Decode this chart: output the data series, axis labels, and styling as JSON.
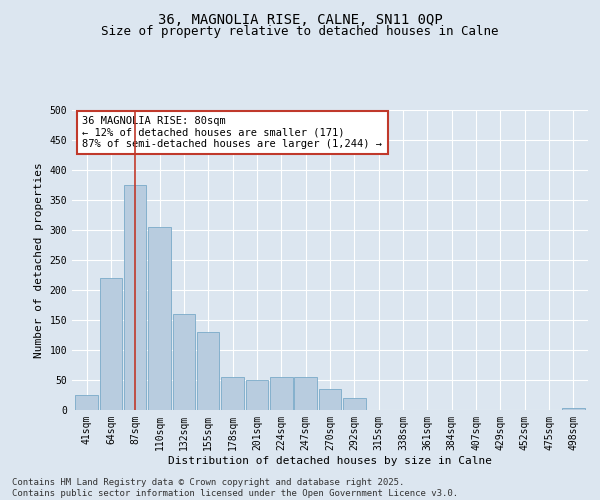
{
  "title_line1": "36, MAGNOLIA RISE, CALNE, SN11 0QP",
  "title_line2": "Size of property relative to detached houses in Calne",
  "xlabel": "Distribution of detached houses by size in Calne",
  "ylabel": "Number of detached properties",
  "categories": [
    "41sqm",
    "64sqm",
    "87sqm",
    "110sqm",
    "132sqm",
    "155sqm",
    "178sqm",
    "201sqm",
    "224sqm",
    "247sqm",
    "270sqm",
    "292sqm",
    "315sqm",
    "338sqm",
    "361sqm",
    "384sqm",
    "407sqm",
    "429sqm",
    "452sqm",
    "475sqm",
    "498sqm"
  ],
  "values": [
    25,
    220,
    375,
    305,
    160,
    130,
    55,
    50,
    55,
    55,
    35,
    20,
    0,
    0,
    0,
    0,
    0,
    0,
    0,
    0,
    3
  ],
  "bar_color": "#b8ccdf",
  "bar_edge_color": "#7aaac8",
  "vertical_line_x": 2.0,
  "vline_color": "#c0392b",
  "annotation_text": "36 MAGNOLIA RISE: 80sqm\n← 12% of detached houses are smaller (171)\n87% of semi-detached houses are larger (1,244) →",
  "annotation_box_facecolor": "#ffffff",
  "annotation_box_edgecolor": "#c0392b",
  "ylim": [
    0,
    500
  ],
  "yticks": [
    0,
    50,
    100,
    150,
    200,
    250,
    300,
    350,
    400,
    450,
    500
  ],
  "background_color": "#dce6f0",
  "footer_text": "Contains HM Land Registry data © Crown copyright and database right 2025.\nContains public sector information licensed under the Open Government Licence v3.0.",
  "title_fontsize": 10,
  "subtitle_fontsize": 9,
  "axis_label_fontsize": 8,
  "tick_fontsize": 7,
  "annotation_fontsize": 7.5,
  "footer_fontsize": 6.5
}
